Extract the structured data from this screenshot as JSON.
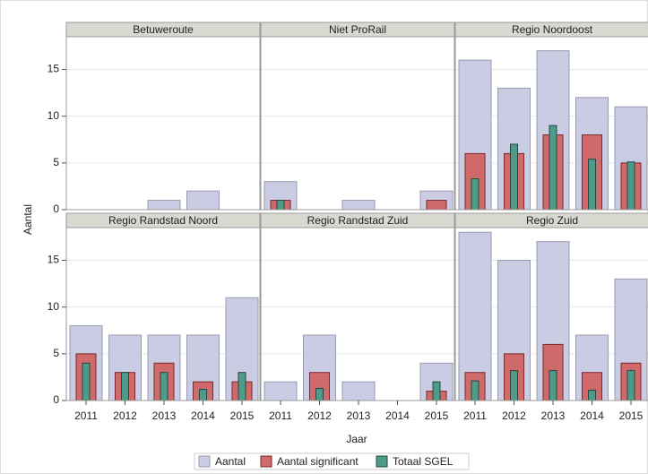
{
  "chart_data": {
    "type": "bar",
    "y_label": "Aantal",
    "x_label": "Jaar",
    "categories": [
      "2011",
      "2012",
      "2013",
      "2014",
      "2015"
    ],
    "ylim": [
      0,
      18.5
    ],
    "yticks": [
      0,
      5,
      10,
      15
    ],
    "grid": true,
    "legend": [
      {
        "name": "Aantal",
        "color": "#c9cce3"
      },
      {
        "name": "Aantal significant",
        "color": "#d06a6a"
      },
      {
        "name": "Totaal SGEL",
        "color": "#4f9a88"
      }
    ],
    "panels": [
      {
        "title": "Betuweroute",
        "series": [
          {
            "values": [
              0,
              0,
              1,
              2,
              0
            ]
          },
          {
            "values": [
              0,
              0,
              0,
              0,
              0
            ]
          },
          {
            "values": [
              0,
              0,
              0,
              0,
              0
            ]
          }
        ]
      },
      {
        "title": "Niet ProRail",
        "series": [
          {
            "values": [
              3,
              0,
              1,
              0,
              2
            ]
          },
          {
            "values": [
              1,
              0,
              0,
              0,
              1
            ]
          },
          {
            "values": [
              1,
              0,
              0,
              0,
              0
            ]
          }
        ]
      },
      {
        "title": "Regio Noordoost",
        "series": [
          {
            "values": [
              16,
              13,
              17,
              12,
              11
            ]
          },
          {
            "values": [
              6,
              6,
              8,
              8,
              5
            ]
          },
          {
            "values": [
              3.3,
              7,
              9,
              5.4,
              5.1
            ]
          }
        ]
      },
      {
        "title": "Regio Randstad Noord",
        "series": [
          {
            "values": [
              8,
              7,
              7,
              7,
              11
            ]
          },
          {
            "values": [
              5,
              3,
              4,
              2,
              2
            ]
          },
          {
            "values": [
              4,
              3,
              3,
              1.2,
              3
            ]
          }
        ]
      },
      {
        "title": "Regio Randstad Zuid",
        "series": [
          {
            "values": [
              2,
              7,
              2,
              0,
              4
            ]
          },
          {
            "values": [
              0,
              3,
              0,
              0,
              1
            ]
          },
          {
            "values": [
              0,
              1.3,
              0,
              0,
              2
            ]
          }
        ]
      },
      {
        "title": "Regio Zuid",
        "series": [
          {
            "values": [
              18,
              15,
              17,
              7,
              13
            ]
          },
          {
            "values": [
              3,
              5,
              6,
              3,
              4
            ]
          },
          {
            "values": [
              2.1,
              3.2,
              3.2,
              1.1,
              3.2
            ]
          }
        ]
      }
    ]
  }
}
